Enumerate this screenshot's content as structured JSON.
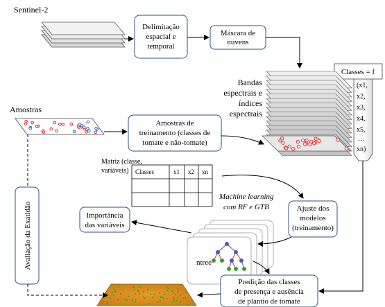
{
  "labels": {
    "sentinel": "Sentinel-2",
    "amostras": "Amostras",
    "bandas": [
      "Bandas",
      "espectrais e",
      "índices",
      "espectrais"
    ],
    "matriz": [
      "Matriz (classe,",
      "variáveis)"
    ],
    "ml": [
      "Machine learning",
      "com RF e GTB"
    ],
    "avaliacao": "Avaliação da Exatidão",
    "ntree": "ntree"
  },
  "boxes": {
    "delimitacao": [
      "Delimitação",
      "espacial e",
      "temporal"
    ],
    "mascara": [
      "Máscara de",
      "nuvens"
    ],
    "amostras_treino": [
      "Amostras de",
      "treinamento (classes de",
      "tomate e não-tomate)"
    ],
    "ajuste": [
      "Ajuste dos",
      "modelos",
      "(treinamento)"
    ],
    "importancia": [
      "Importância",
      "das variáveis"
    ],
    "predicao": [
      "Predição das classes",
      "de presença e ausência",
      "de plantio de tomate"
    ]
  },
  "classes_box": {
    "title": "Classes = f",
    "vars": [
      "(x1,",
      "x2,",
      "x3,",
      "x4,",
      "x5,",
      "…",
      "xn)"
    ]
  },
  "table": {
    "headers": [
      "Classes",
      "x1",
      "x2",
      "xn"
    ]
  },
  "colors": {
    "box_border": "#2f4f7f",
    "arrow": "#000000",
    "sample_red": "#d9262c",
    "sample_blue": "#2b6cc4",
    "map_orange": "#d98a1c",
    "map_green": "#4f9a2a",
    "tree_blue": "#3a5fc8",
    "tree_green": "#3c9a3c",
    "tree_red": "#c0392b"
  }
}
